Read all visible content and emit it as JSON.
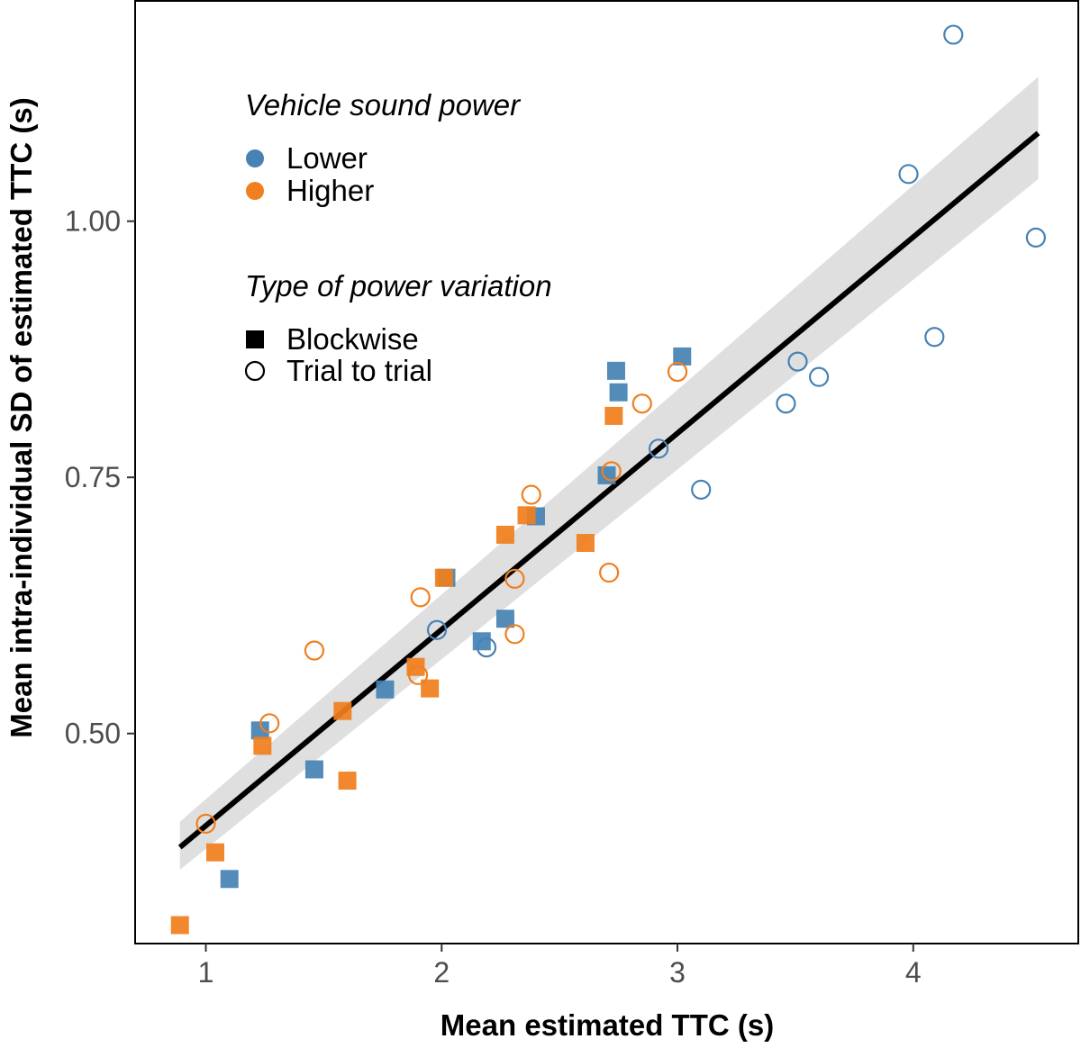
{
  "chart_data": {
    "type": "scatter",
    "xlabel": "Mean estimated TTC (s)",
    "ylabel": "Mean intra-individual SD of estimated TTC (s)",
    "xlim": [
      0.7,
      4.7
    ],
    "ylim": [
      0.295,
      1.215
    ],
    "x_ticks": [
      1,
      2,
      3,
      4
    ],
    "x_tick_labels": [
      "1",
      "2",
      "3",
      "4"
    ],
    "y_ticks": [
      0.5,
      0.75,
      1.0
    ],
    "y_tick_labels": [
      "0.50",
      "0.75",
      "1.00"
    ],
    "grid": false,
    "colors": {
      "Lower": "#4682b4",
      "Higher": "#f07f1e",
      "line": "#000000",
      "band": "#d9d9d9"
    },
    "legend": {
      "placement": "top-left",
      "color_title": "Vehicle sound power",
      "color_entries": [
        {
          "label": "Lower",
          "group": "Lower"
        },
        {
          "label": "Higher",
          "group": "Higher"
        }
      ],
      "shape_title": "Type of power variation",
      "shape_entries": [
        {
          "label": "Blockwise",
          "shape": "square"
        },
        {
          "label": "Trial to trial",
          "shape": "circle"
        }
      ]
    },
    "fit": {
      "x": [
        0.89,
        4.53
      ],
      "y": [
        0.389,
        1.086
      ],
      "ci_lower": [
        0.367,
        1.041
      ],
      "ci_upper": [
        0.414,
        1.141
      ]
    },
    "series": [
      {
        "name": "Lower / Blockwise",
        "color_group": "Lower",
        "shape": "square",
        "points": [
          {
            "x": 1.1,
            "y": 0.358
          },
          {
            "x": 1.23,
            "y": 0.503
          },
          {
            "x": 1.46,
            "y": 0.465
          },
          {
            "x": 1.76,
            "y": 0.543
          },
          {
            "x": 2.02,
            "y": 0.652
          },
          {
            "x": 2.17,
            "y": 0.59
          },
          {
            "x": 2.27,
            "y": 0.612
          },
          {
            "x": 2.4,
            "y": 0.712
          },
          {
            "x": 2.7,
            "y": 0.752
          },
          {
            "x": 2.74,
            "y": 0.854
          },
          {
            "x": 2.75,
            "y": 0.833
          },
          {
            "x": 3.02,
            "y": 0.868
          }
        ]
      },
      {
        "name": "Higher / Blockwise",
        "color_group": "Higher",
        "shape": "square",
        "points": [
          {
            "x": 0.89,
            "y": 0.313
          },
          {
            "x": 1.04,
            "y": 0.384
          },
          {
            "x": 1.24,
            "y": 0.488
          },
          {
            "x": 1.58,
            "y": 0.522
          },
          {
            "x": 1.6,
            "y": 0.454
          },
          {
            "x": 1.89,
            "y": 0.565
          },
          {
            "x": 1.95,
            "y": 0.544
          },
          {
            "x": 2.01,
            "y": 0.652
          },
          {
            "x": 2.27,
            "y": 0.694
          },
          {
            "x": 2.36,
            "y": 0.713
          },
          {
            "x": 2.61,
            "y": 0.686
          },
          {
            "x": 2.73,
            "y": 0.81
          }
        ]
      },
      {
        "name": "Lower / Trial to trial",
        "color_group": "Lower",
        "shape": "circle",
        "points": [
          {
            "x": 1.98,
            "y": 0.601
          },
          {
            "x": 2.19,
            "y": 0.584
          },
          {
            "x": 2.92,
            "y": 0.778
          },
          {
            "x": 3.1,
            "y": 0.738
          },
          {
            "x": 3.46,
            "y": 0.822
          },
          {
            "x": 3.51,
            "y": 0.863
          },
          {
            "x": 3.6,
            "y": 0.848
          },
          {
            "x": 3.98,
            "y": 1.046
          },
          {
            "x": 4.09,
            "y": 0.887
          },
          {
            "x": 4.17,
            "y": 1.182
          },
          {
            "x": 4.52,
            "y": 0.984
          }
        ]
      },
      {
        "name": "Higher / Trial to trial",
        "color_group": "Higher",
        "shape": "circle",
        "points": [
          {
            "x": 1.0,
            "y": 0.412
          },
          {
            "x": 1.27,
            "y": 0.51
          },
          {
            "x": 1.46,
            "y": 0.581
          },
          {
            "x": 1.9,
            "y": 0.557
          },
          {
            "x": 1.91,
            "y": 0.633
          },
          {
            "x": 2.31,
            "y": 0.651
          },
          {
            "x": 2.31,
            "y": 0.597
          },
          {
            "x": 2.38,
            "y": 0.733
          },
          {
            "x": 2.71,
            "y": 0.657
          },
          {
            "x": 2.72,
            "y": 0.756
          },
          {
            "x": 2.85,
            "y": 0.822
          },
          {
            "x": 3.0,
            "y": 0.853
          }
        ]
      }
    ]
  }
}
